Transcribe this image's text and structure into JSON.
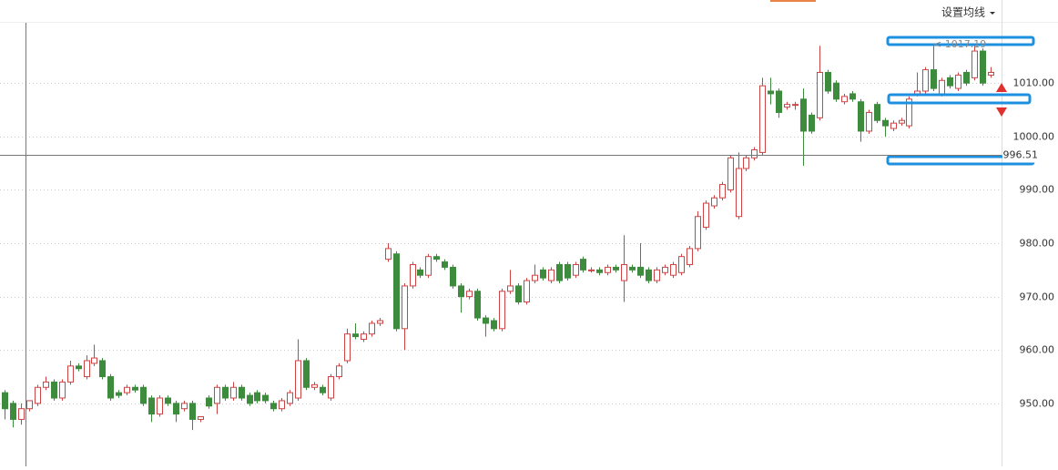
{
  "chart_data": {
    "type": "candlestick",
    "button": "设置均线",
    "ylim": [
      938.2,
      1021.3
    ],
    "yticks": [
      {
        "value": 950,
        "label": "950.00"
      },
      {
        "value": 960,
        "label": "960.00"
      },
      {
        "value": 970,
        "label": "970.00"
      },
      {
        "value": 980,
        "label": "980.00"
      },
      {
        "value": 990,
        "label": "990.00"
      },
      {
        "value": 1000,
        "label": "1000.00"
      },
      {
        "value": 1010,
        "label": "1010.00"
      }
    ],
    "grid": true,
    "up_color": "#cc4444",
    "down_color": "#3d8b3d",
    "crosshair": 996.51,
    "max_label": {
      "value": 1017.19,
      "label": "< 1017.19"
    },
    "candles": [
      [
        952,
        952.5,
        947,
        949
      ],
      [
        950,
        950.5,
        945.5,
        947
      ],
      [
        947,
        950,
        946,
        949
      ],
      [
        949,
        950.5,
        948.5,
        950.5
      ],
      [
        950,
        953.5,
        949.5,
        953
      ],
      [
        953,
        955,
        952.5,
        954
      ],
      [
        954,
        954.5,
        950.5,
        951
      ],
      [
        951,
        954.5,
        950.5,
        954
      ],
      [
        954,
        958,
        953.5,
        957
      ],
      [
        957,
        957.5,
        956,
        956.5
      ],
      [
        955,
        959,
        954.5,
        958
      ],
      [
        957.5,
        961,
        957,
        958.5
      ],
      [
        958,
        958.5,
        954.5,
        955
      ],
      [
        955,
        955.5,
        950.5,
        951
      ],
      [
        952,
        952.5,
        951,
        951.5
      ],
      [
        952,
        953.5,
        951.5,
        953
      ],
      [
        953,
        953.5,
        952,
        952.5
      ],
      [
        953,
        953.5,
        949.5,
        950
      ],
      [
        951,
        951.5,
        946.5,
        948
      ],
      [
        948,
        951.5,
        947.5,
        951
      ],
      [
        951,
        951.5,
        949.5,
        950
      ],
      [
        950,
        950.5,
        946.5,
        948
      ],
      [
        949,
        950.5,
        948.5,
        950
      ],
      [
        950,
        950.5,
        945,
        947
      ],
      [
        947,
        947.5,
        946.5,
        947.5
      ],
      [
        951,
        951.5,
        949,
        949.5
      ],
      [
        950,
        953.5,
        948,
        953
      ],
      [
        953,
        953.5,
        950.5,
        951
      ],
      [
        951,
        954,
        950.5,
        953
      ],
      [
        953,
        953.5,
        950.5,
        951
      ],
      [
        951.5,
        952,
        949.5,
        950
      ],
      [
        952,
        952.5,
        950,
        950.5
      ],
      [
        951.5,
        952,
        950,
        950.5
      ],
      [
        950,
        950.5,
        948.5,
        949
      ],
      [
        949,
        951,
        948.5,
        950.5
      ],
      [
        950,
        952.5,
        949.5,
        952
      ],
      [
        951,
        962,
        950.5,
        958
      ],
      [
        958,
        958.5,
        952.5,
        953
      ],
      [
        953,
        954,
        952.5,
        953.5
      ],
      [
        953,
        953.5,
        951.5,
        952
      ],
      [
        951,
        955.5,
        950.5,
        955
      ],
      [
        955,
        957.5,
        954.5,
        957
      ],
      [
        958,
        964,
        957.5,
        963
      ],
      [
        963,
        965,
        962,
        962.5
      ],
      [
        962,
        963.5,
        961.5,
        963
      ],
      [
        963,
        965.5,
        962.5,
        965
      ],
      [
        965,
        966,
        964.5,
        965.5
      ],
      [
        977,
        980,
        976.5,
        979
      ],
      [
        978,
        978.5,
        963.5,
        964
      ],
      [
        964,
        972.5,
        960,
        972
      ],
      [
        972,
        976.5,
        971.5,
        976
      ],
      [
        975,
        975.5,
        973.5,
        974
      ],
      [
        974,
        978,
        973.5,
        977.5
      ],
      [
        977.5,
        978,
        976.5,
        977
      ],
      [
        976.5,
        977,
        975,
        975.5
      ],
      [
        975.5,
        976,
        971.5,
        972
      ],
      [
        972,
        972.5,
        967,
        970
      ],
      [
        970,
        971.5,
        969.5,
        971
      ],
      [
        971,
        971.5,
        965.5,
        966
      ],
      [
        966,
        966.5,
        962.5,
        965
      ],
      [
        965.5,
        966,
        963.5,
        964
      ],
      [
        964,
        971.5,
        963.5,
        971
      ],
      [
        971,
        975,
        970.5,
        972
      ],
      [
        972,
        972.5,
        968.5,
        969
      ],
      [
        969,
        973.5,
        968.5,
        973
      ],
      [
        973,
        976,
        972.5,
        974
      ],
      [
        975,
        975.5,
        973,
        973.5
      ],
      [
        973,
        975.5,
        972.5,
        975
      ],
      [
        976,
        976.5,
        972.5,
        973
      ],
      [
        976,
        976.5,
        973,
        973.5
      ],
      [
        974,
        976.5,
        973.5,
        976
      ],
      [
        977,
        977.5,
        974.5,
        975
      ],
      [
        975,
        975.5,
        974.5,
        975
      ],
      [
        975,
        975.5,
        974,
        974.5
      ],
      [
        974.5,
        976,
        974,
        975.5
      ],
      [
        975.5,
        976,
        974.5,
        975
      ],
      [
        973,
        981.5,
        969,
        976
      ],
      [
        975.5,
        976,
        974.5,
        975
      ],
      [
        975.5,
        980,
        973.5,
        974
      ],
      [
        975,
        975.5,
        972.5,
        973
      ],
      [
        973,
        975.5,
        972.5,
        975
      ],
      [
        974.5,
        976,
        974,
        975.5
      ],
      [
        974,
        976.5,
        973.5,
        976
      ],
      [
        974.5,
        978,
        974,
        977.5
      ],
      [
        976,
        979.5,
        975.5,
        979
      ],
      [
        979,
        986,
        978.5,
        985
      ],
      [
        983,
        988,
        982.5,
        987.5
      ],
      [
        987,
        989,
        986.5,
        988.5
      ],
      [
        988.5,
        991.5,
        988,
        991
      ],
      [
        990,
        996.5,
        989.5,
        996
      ],
      [
        985,
        997,
        984.5,
        994
      ],
      [
        994,
        996.5,
        993.5,
        996
      ],
      [
        996,
        998,
        995.5,
        997.5
      ],
      [
        997,
        1011,
        996.5,
        1009.5
      ],
      [
        1008.5,
        1011,
        1006,
        1008
      ],
      [
        1008.5,
        1009,
        1003.5,
        1004.5
      ],
      [
        1005.5,
        1006.5,
        1005,
        1006
      ],
      [
        1006,
        1006.5,
        1005,
        1006
      ],
      [
        1007,
        1009,
        994.5,
        1001
      ],
      [
        1004,
        1004.5,
        1000.5,
        1001
      ],
      [
        1003.5,
        1017,
        1003,
        1012
      ],
      [
        1012,
        1012.5,
        1008,
        1008.5
      ],
      [
        1010,
        1010.5,
        1006.5,
        1007
      ],
      [
        1006.5,
        1008,
        1006,
        1007.5
      ],
      [
        1008,
        1008.5,
        1006.5,
        1007
      ],
      [
        1006.5,
        1007,
        999,
        1001
      ],
      [
        1001,
        1005,
        1000.5,
        1004.5
      ],
      [
        1006,
        1006.5,
        1002.5,
        1003
      ],
      [
        1003,
        1003.5,
        1000,
        1002
      ],
      [
        1001.5,
        1003,
        1001,
        1002.5
      ],
      [
        1002.5,
        1003.5,
        1002,
        1003
      ],
      [
        1002,
        1007.5,
        1001.5,
        1007
      ],
      [
        1008,
        1012,
        1007.5,
        1008.5
      ],
      [
        1008.5,
        1013,
        1008,
        1012.5
      ],
      [
        1012.5,
        1017,
        1008.5,
        1009
      ],
      [
        1008,
        1011,
        1007.5,
        1010.5
      ],
      [
        1011,
        1011.5,
        1009,
        1009.5
      ],
      [
        1009,
        1012,
        1008.5,
        1011.5
      ],
      [
        1012,
        1012.5,
        1009.5,
        1010
      ],
      [
        1011,
        1017,
        1010.5,
        1016
      ],
      [
        1016,
        1016.5,
        1009.5,
        1010
      ],
      [
        1011.5,
        1013,
        1011,
        1012
      ]
    ]
  }
}
